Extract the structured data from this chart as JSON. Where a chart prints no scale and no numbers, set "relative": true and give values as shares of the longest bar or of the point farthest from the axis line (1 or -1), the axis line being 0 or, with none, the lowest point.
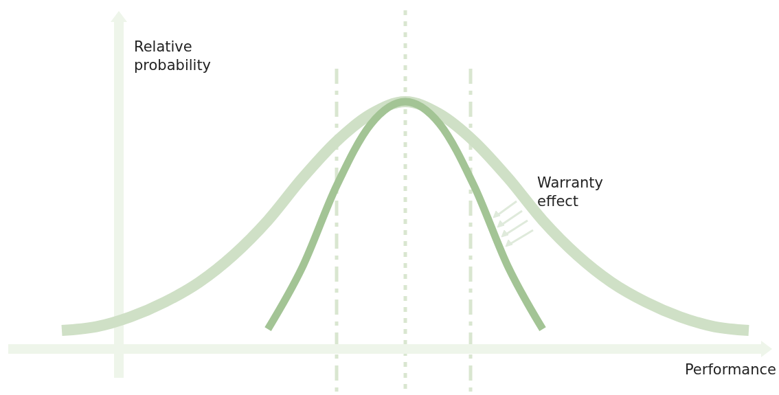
{
  "chart_data": {
    "type": "line",
    "relative": true,
    "xlabel": "Performance",
    "ylabel": "Relative probability",
    "annotations": [
      "Warranty effect"
    ],
    "categories": [
      null,
      null,
      null,
      null,
      null,
      null,
      null,
      null,
      null,
      null,
      null,
      null,
      null,
      null,
      null,
      null,
      null,
      null,
      null,
      null,
      null
    ],
    "series": [
      {
        "color": "#cfe0c6",
        "values": [
          0.075,
          0.09,
          0.13,
          0.19,
          0.27,
          0.38,
          0.52,
          0.69,
          0.84,
          0.95,
          1,
          0.95,
          0.84,
          0.69,
          0.52,
          0.38,
          0.27,
          0.19,
          0.13,
          0.09,
          0.075
        ]
      },
      {
        "color": "#a3c495",
        "values": [
          null,
          null,
          null,
          null,
          null,
          null,
          0.08,
          0.33,
          0.66,
          0.91,
          1,
          0.91,
          0.66,
          0.33,
          0.08,
          null,
          null,
          null,
          null,
          null,
          null
        ]
      }
    ]
  }
}
